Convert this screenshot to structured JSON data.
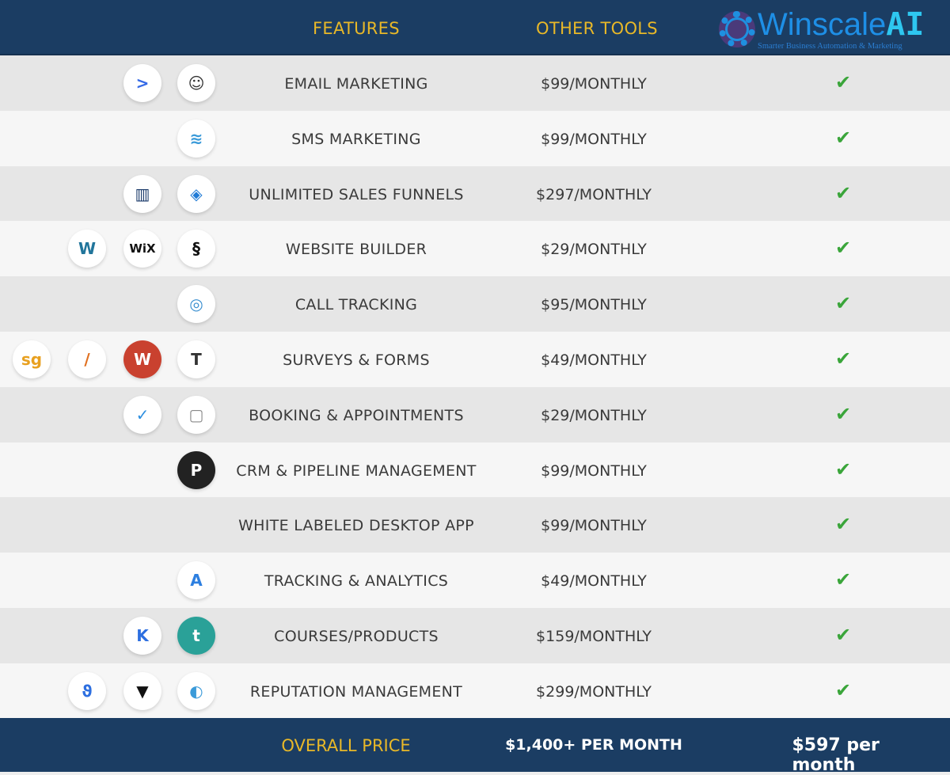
{
  "header": {
    "features": "FEATURES",
    "other_tools": "OTHER TOOLS",
    "logo_main": "Winscale",
    "logo_ai": "AI",
    "logo_tagline": "Smarter Business Automation & Marketing"
  },
  "rows": [
    {
      "feature": "EMAIL MARKETING",
      "price": "$99/MONTHLY",
      "icons": [
        {
          "name": "activecampaign-icon",
          "glyph": ">",
          "color": "#356ae6"
        },
        {
          "name": "mailchimp-icon",
          "glyph": "☺",
          "color": "#333"
        }
      ]
    },
    {
      "feature": "SMS MARKETING",
      "price": "$99/MONTHLY",
      "icons": [
        {
          "name": "sms-layers-icon",
          "glyph": "≋",
          "color": "#3a9ad9"
        }
      ]
    },
    {
      "feature": "UNLIMITED SALES FUNNELS",
      "price": "$297/MONTHLY",
      "icons": [
        {
          "name": "clickfunnels-icon",
          "glyph": "▥",
          "color": "#1a3a6a"
        },
        {
          "name": "leadpages-icon",
          "glyph": "◈",
          "color": "#1f7ad6"
        }
      ]
    },
    {
      "feature": "WEBSITE BUILDER",
      "price": "$29/MONTHLY",
      "icons": [
        {
          "name": "wordpress-icon",
          "glyph": "W",
          "color": "#21759b"
        },
        {
          "name": "wix-icon",
          "glyph": "WiX",
          "color": "#111"
        },
        {
          "name": "squarespace-icon",
          "glyph": "§",
          "color": "#111"
        }
      ]
    },
    {
      "feature": "CALL TRACKING",
      "price": "$95/MONTHLY",
      "icons": [
        {
          "name": "callrail-icon",
          "glyph": "◎",
          "color": "#3a8fd0"
        }
      ]
    },
    {
      "feature": "SURVEYS & FORMS",
      "price": "$49/MONTHLY",
      "icons": [
        {
          "name": "surveygizmo-icon",
          "glyph": "sg",
          "color": "#e8a020"
        },
        {
          "name": "jotform-icon",
          "glyph": "/",
          "color": "#e07020"
        },
        {
          "name": "wufoo-icon",
          "glyph": "W",
          "color": "#fff",
          "bg": "#c9412f"
        },
        {
          "name": "typeform-icon",
          "glyph": "T",
          "color": "#333"
        }
      ]
    },
    {
      "feature": "BOOKING & APPOINTMENTS",
      "price": "$29/MONTHLY",
      "icons": [
        {
          "name": "acuity-check-icon",
          "glyph": "✓",
          "color": "#2d8fe0"
        },
        {
          "name": "calendar-icon",
          "glyph": "▢",
          "color": "#888"
        }
      ]
    },
    {
      "feature": "CRM & PIPELINE MANAGEMENT",
      "price": "$99/MONTHLY",
      "icons": [
        {
          "name": "pipedrive-icon",
          "glyph": "P",
          "color": "#fff",
          "bg": "#222"
        }
      ]
    },
    {
      "feature": "WHITE LABELED DESKTOP APP",
      "price": "$99/MONTHLY",
      "icons": []
    },
    {
      "feature": "TRACKING & ANALYTICS",
      "price": "$49/MONTHLY",
      "icons": [
        {
          "name": "analytics-icon",
          "glyph": "A",
          "color": "#2d7fe0"
        }
      ]
    },
    {
      "feature": "COURSES/PRODUCTS",
      "price": "$159/MONTHLY",
      "icons": [
        {
          "name": "kajabi-icon",
          "glyph": "K",
          "color": "#2d6fe0"
        },
        {
          "name": "teachable-icon",
          "glyph": "t",
          "color": "#fff",
          "bg": "#2aa198"
        }
      ]
    },
    {
      "feature": "REPUTATION MANAGEMENT",
      "price": "$299/MONTHLY",
      "icons": [
        {
          "name": "birdeye-icon",
          "glyph": "ϑ",
          "color": "#2d6fe0"
        },
        {
          "name": "podium-icon",
          "glyph": "▼",
          "color": "#111"
        },
        {
          "name": "reputation-icon",
          "glyph": "◐",
          "color": "#3a9ad9"
        }
      ]
    }
  ],
  "footer": {
    "label": "OVERALL PRICE",
    "other_total": "$1,400+ PER MONTH",
    "our_price": "$597 per month"
  },
  "colors": {
    "header_bg": "#1b3d63",
    "accent_gold": "#e8b828",
    "check_green": "#3aa53a"
  }
}
